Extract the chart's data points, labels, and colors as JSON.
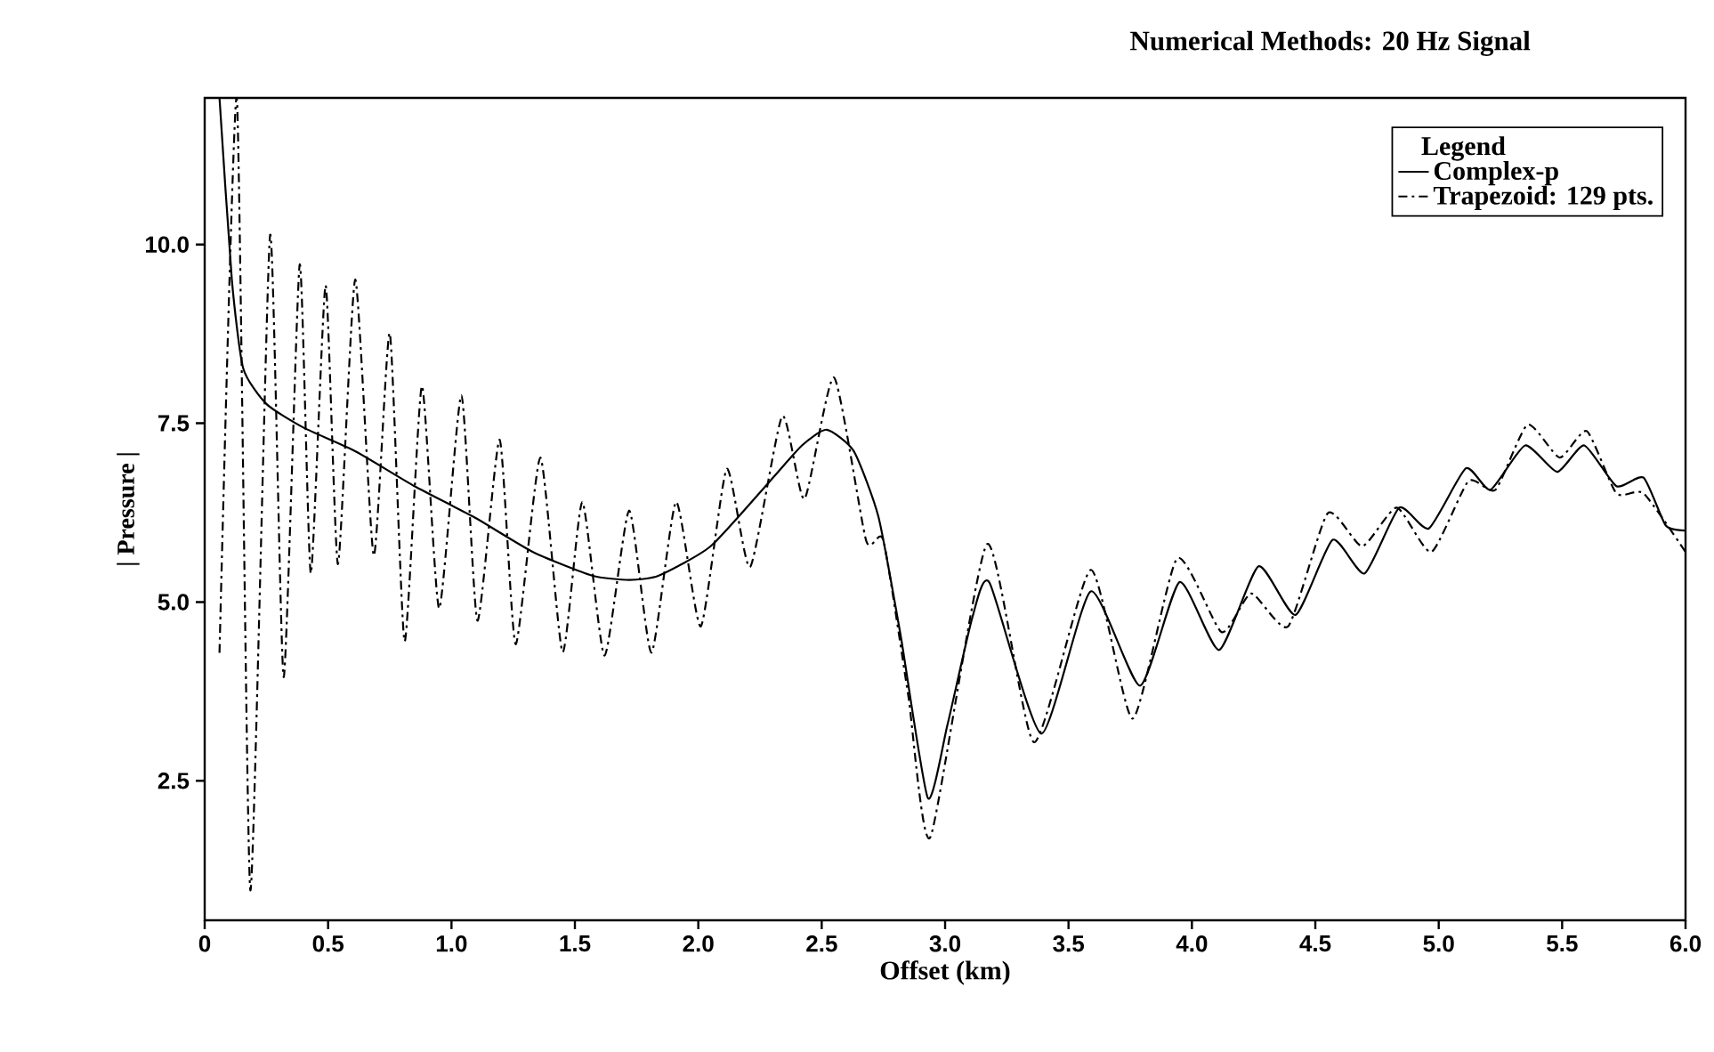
{
  "chart_data": {
    "type": "line",
    "title": "Numerical Methods: 20 Hz Signal",
    "xlabel": "Offset (km)",
    "ylabel": "| Pressure |",
    "legend_title": "Legend",
    "legend": "top right",
    "xlim": [
      0,
      6.0
    ],
    "ylim": [
      0.55,
      12.05
    ],
    "xticks": [
      0,
      {
        "value": 0.5,
        "label": "0.5"
      },
      {
        "value": 1,
        "label": "1.0"
      },
      {
        "value": 1.5,
        "label": "1.5"
      },
      {
        "value": 2,
        "label": "2.0"
      },
      {
        "value": 2.5,
        "label": "2.5"
      },
      {
        "value": 3,
        "label": "3.0"
      },
      {
        "value": 3.5,
        "label": "3.5"
      },
      {
        "value": 4,
        "label": "4.0"
      },
      {
        "value": 4.5,
        "label": "4.5"
      },
      {
        "value": 5,
        "label": "5.0"
      },
      {
        "value": 5.5,
        "label": "5.5"
      },
      {
        "value": 6,
        "label": "6.0"
      }
    ],
    "yticks": [
      {
        "value": 2.5,
        "label": "2.5"
      },
      {
        "value": 5,
        "label": "5.0"
      },
      {
        "value": 7.5,
        "label": "7.5"
      },
      {
        "value": 10,
        "label": "10.0"
      }
    ],
    "series": [
      {
        "name": "Complex-p",
        "color": "#000000",
        "line_style": "solid",
        "x": [
          0.06,
          0.11,
          0.156,
          0.25,
          0.4,
          0.61,
          0.85,
          1.09,
          1.33,
          1.57,
          1.72,
          1.84,
          2.05,
          2.29,
          2.42,
          2.52,
          2.63,
          2.73,
          2.82,
          2.93,
          3.01,
          3.11,
          3.18,
          3.39,
          3.59,
          3.79,
          3.95,
          4.11,
          4.27,
          4.42,
          4.57,
          4.7,
          4.84,
          4.96,
          5.11,
          5.21,
          5.35,
          5.48,
          5.59,
          5.72,
          5.83,
          5.92,
          6.0
        ],
        "values": [
          12.05,
          9.51,
          8.27,
          7.77,
          7.44,
          7.11,
          6.62,
          6.19,
          5.7,
          5.37,
          5.31,
          5.37,
          5.78,
          6.69,
          7.19,
          7.41,
          7.11,
          6.19,
          4.53,
          2.26,
          3.29,
          4.78,
          5.27,
          3.16,
          5.15,
          3.83,
          5.28,
          4.33,
          5.5,
          4.82,
          5.87,
          5.4,
          6.32,
          6.03,
          6.87,
          6.57,
          7.19,
          6.82,
          7.19,
          6.62,
          6.74,
          6.07,
          6.0
        ]
      },
      {
        "name": "Trapezoid: 129 pts.",
        "color": "#000000",
        "line_style": "dashdot",
        "x": [
          0.06,
          0.13,
          0.185,
          0.265,
          0.32,
          0.385,
          0.43,
          0.49,
          0.54,
          0.61,
          0.685,
          0.75,
          0.81,
          0.88,
          0.95,
          1.04,
          1.105,
          1.195,
          1.26,
          1.36,
          1.45,
          1.53,
          1.62,
          1.72,
          1.81,
          1.91,
          2.01,
          2.115,
          2.21,
          2.34,
          2.43,
          2.55,
          2.68,
          2.75,
          2.85,
          2.94,
          3.17,
          3.36,
          3.59,
          3.76,
          3.94,
          4.12,
          4.24,
          4.39,
          4.55,
          4.69,
          4.83,
          4.97,
          5.12,
          5.23,
          5.36,
          5.49,
          5.6,
          5.72,
          5.83,
          6.0
        ],
        "values": [
          4.29,
          12.05,
          0.97,
          10.13,
          3.95,
          9.72,
          5.4,
          9.43,
          5.53,
          9.51,
          5.65,
          8.76,
          4.45,
          8.02,
          4.91,
          7.89,
          4.74,
          7.27,
          4.41,
          7.02,
          4.3,
          6.4,
          4.25,
          6.28,
          4.29,
          6.4,
          4.66,
          6.86,
          5.49,
          7.6,
          6.44,
          8.14,
          5.86,
          5.86,
          3.71,
          1.71,
          5.81,
          3.04,
          5.45,
          3.37,
          5.61,
          4.58,
          5.12,
          4.66,
          6.24,
          5.78,
          6.32,
          5.7,
          6.69,
          6.57,
          7.48,
          7.02,
          7.39,
          6.52,
          6.52,
          5.7
        ]
      }
    ]
  }
}
